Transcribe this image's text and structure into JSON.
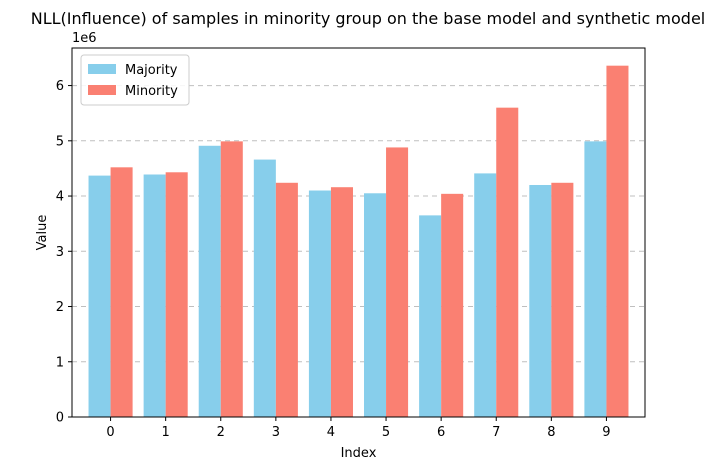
{
  "chart_data": {
    "type": "bar",
    "title": "NLL(Influence) of samples in minority group on the base model and synthetic model",
    "xlabel": "Index",
    "ylabel": "Value",
    "y_offset_label": "1e6",
    "categories": [
      "0",
      "1",
      "2",
      "3",
      "4",
      "5",
      "6",
      "7",
      "8",
      "9"
    ],
    "series": [
      {
        "name": "Majority",
        "color": "#87CEEB",
        "values": [
          4.37,
          4.39,
          4.91,
          4.66,
          4.1,
          4.05,
          3.65,
          4.41,
          4.2,
          4.99
        ]
      },
      {
        "name": "Minority",
        "color": "#FA8072",
        "values": [
          4.52,
          4.43,
          4.99,
          4.24,
          4.16,
          4.88,
          4.04,
          5.6,
          4.24,
          6.36
        ]
      }
    ],
    "ylim": [
      0,
      6.68
    ],
    "yticks": [
      0,
      1,
      2,
      3,
      4,
      5,
      6
    ],
    "grid": "y-dashed",
    "legend_position": "top-left"
  }
}
